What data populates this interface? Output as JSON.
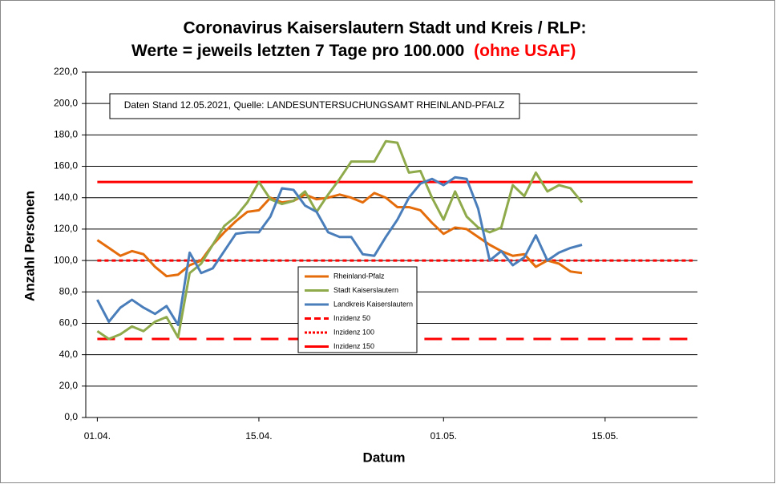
{
  "chart_data": {
    "type": "line",
    "title": [
      "Coronavirus Kaiserslautern Stadt und Kreis / RLP:",
      "Werte = jeweils letzten 7 Tage pro 100.000"
    ],
    "title_highlight": "(ohne USAF)",
    "annotation": "Daten Stand 12.05.2021, Quelle: LANDESUNTERSUCHUNGSAMT RHEINLAND-PFALZ",
    "x_label": "Datum",
    "y_label": "Anzahl Personen",
    "x": [
      0,
      1,
      2,
      3,
      4,
      5,
      6,
      7,
      8,
      9,
      10,
      11,
      12,
      13,
      14,
      15,
      16,
      17,
      18,
      19,
      20,
      21,
      22,
      23,
      24,
      25,
      26,
      27,
      28,
      29,
      30,
      31,
      32,
      33,
      34,
      35,
      36,
      37,
      38,
      39,
      40,
      41,
      42
    ],
    "xlim": [
      -1,
      52
    ],
    "xticks": [
      {
        "value": 0,
        "label": "01.04."
      },
      {
        "value": 14,
        "label": "15.04."
      },
      {
        "value": 30,
        "label": "01.05."
      },
      {
        "value": 44,
        "label": "15.05."
      }
    ],
    "ylim": [
      0,
      220
    ],
    "yticks": [
      {
        "value": 0,
        "label": "0,0"
      },
      {
        "value": 20,
        "label": "20,0"
      },
      {
        "value": 40,
        "label": "40,0"
      },
      {
        "value": 60,
        "label": "60,0"
      },
      {
        "value": 80,
        "label": "80,0"
      },
      {
        "value": 100,
        "label": "100,0"
      },
      {
        "value": 120,
        "label": "120,0"
      },
      {
        "value": 140,
        "label": "140,0"
      },
      {
        "value": 160,
        "label": "160,0"
      },
      {
        "value": 180,
        "label": "180,0"
      },
      {
        "value": 200,
        "label": "200,0"
      },
      {
        "value": 220,
        "label": "220,0"
      }
    ],
    "grid": true,
    "series": [
      {
        "name": "Rheinland-Pfalz",
        "color": "#e46c0a",
        "values": [
          113,
          108,
          103,
          106,
          104,
          96,
          90,
          91,
          97,
          100,
          110,
          118,
          125,
          131,
          132,
          140,
          137,
          138,
          142,
          139,
          140,
          142,
          140,
          137,
          143,
          140,
          134,
          134,
          132,
          124,
          117,
          121,
          120,
          115,
          110,
          106,
          103,
          104,
          96,
          100,
          98,
          93,
          92
        ]
      },
      {
        "name": "Stadt Kaiserslautern",
        "color": "#8faa4b",
        "values": [
          55,
          50,
          53,
          58,
          55,
          61,
          64,
          51,
          92,
          98,
          110,
          122,
          128,
          137,
          150,
          139,
          136,
          138,
          144,
          131,
          142,
          152,
          163,
          163,
          163,
          176,
          175,
          156,
          157,
          140,
          126,
          144,
          128,
          121,
          118,
          121,
          148,
          141,
          156,
          144,
          148,
          146,
          137
        ]
      },
      {
        "name": "Landkreis Kaiserslautern",
        "color": "#4a7ebb",
        "values": [
          75,
          61,
          70,
          75,
          70,
          66,
          71,
          59,
          105,
          92,
          95,
          106,
          117,
          118,
          118,
          128,
          146,
          145,
          135,
          131,
          118,
          115,
          115,
          104,
          103,
          115,
          126,
          140,
          149,
          152,
          148,
          153,
          152,
          133,
          100,
          106,
          97,
          102,
          116,
          100,
          105,
          108,
          110
        ]
      }
    ],
    "reference_lines": [
      {
        "name": "Inzidenz 50",
        "value": 50,
        "color": "#ff0000",
        "style": "dashed"
      },
      {
        "name": "Inzidenz 100",
        "value": 100,
        "color": "#ff0000",
        "style": "dotted"
      },
      {
        "name": "Inzidenz 150",
        "value": 150,
        "color": "#ff0000",
        "style": "solid"
      }
    ]
  }
}
